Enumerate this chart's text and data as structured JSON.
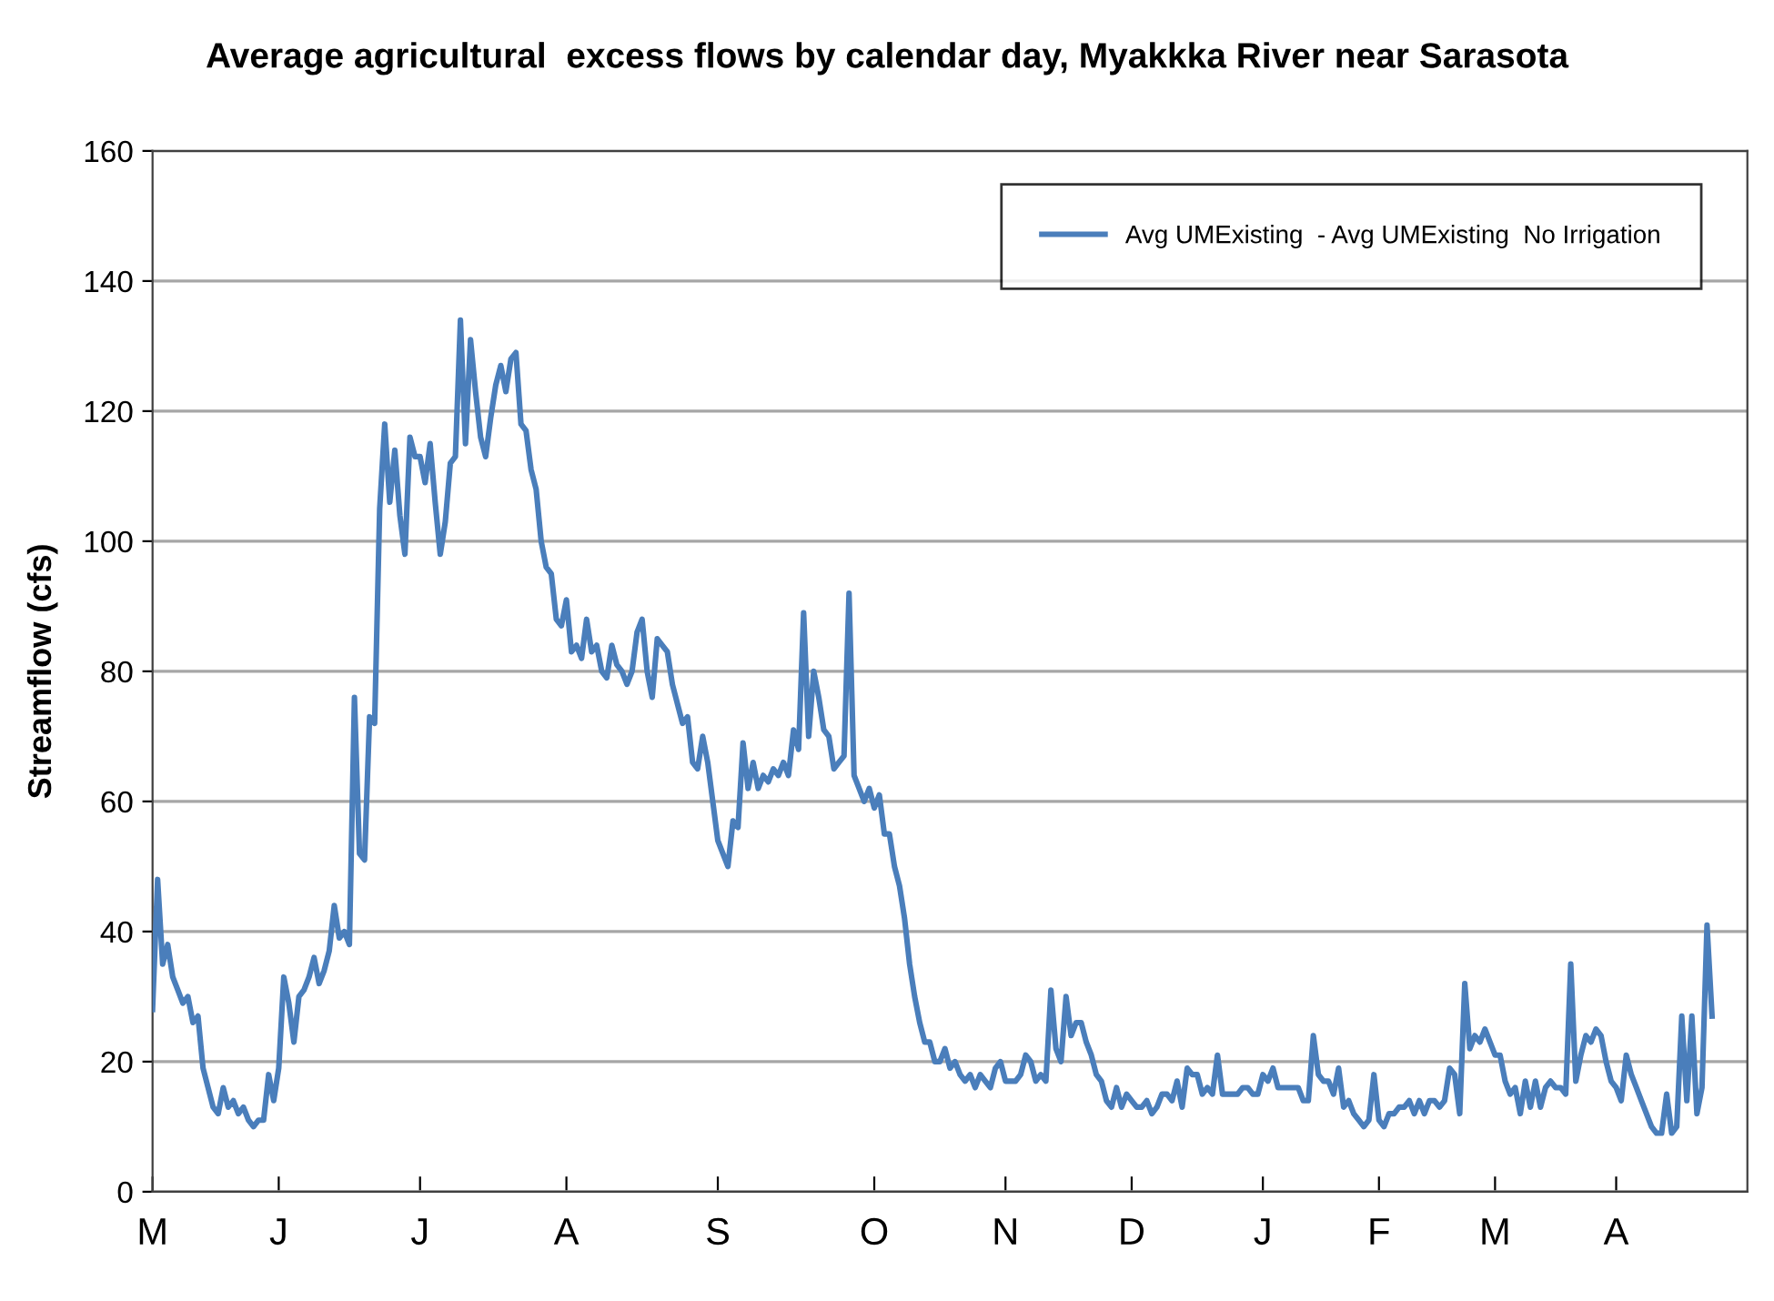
{
  "chart_data": {
    "type": "line",
    "title": "Average agricultural  excess flows by calendar day, Myakkka River near Sarasota",
    "ylabel": "Streamflow (cfs)",
    "ylim": [
      0,
      160
    ],
    "yticks": [
      0,
      20,
      40,
      60,
      80,
      100,
      120,
      140,
      160
    ],
    "categories": [
      "M",
      null,
      null,
      null,
      null,
      null,
      null,
      null,
      null,
      null,
      null,
      null,
      null,
      null,
      null,
      null,
      null,
      null,
      null,
      null,
      null,
      null,
      null,
      null,
      null,
      "J",
      null,
      null,
      null,
      null,
      null,
      null,
      null,
      null,
      null,
      null,
      null,
      null,
      null,
      null,
      null,
      null,
      null,
      null,
      null,
      null,
      null,
      null,
      null,
      null,
      null,
      null,
      null,
      "J",
      null,
      null,
      null,
      null,
      null,
      null,
      null,
      null,
      null,
      null,
      null,
      null,
      null,
      null,
      null,
      null,
      null,
      null,
      null,
      null,
      null,
      null,
      null,
      null,
      null,
      null,
      null,
      null,
      "A",
      null,
      null,
      null,
      null,
      null,
      null,
      null,
      null,
      null,
      null,
      null,
      null,
      null,
      null,
      null,
      null,
      null,
      null,
      null,
      null,
      null,
      null,
      null,
      null,
      null,
      null,
      null,
      null,
      null,
      "S",
      null,
      null,
      null,
      null,
      null,
      null,
      null,
      null,
      null,
      null,
      null,
      null,
      null,
      null,
      null,
      null,
      null,
      null,
      null,
      null,
      null,
      null,
      null,
      null,
      null,
      null,
      null,
      null,
      null,
      null,
      "O",
      null,
      null,
      null,
      null,
      null,
      null,
      null,
      null,
      null,
      null,
      null,
      null,
      null,
      null,
      null,
      null,
      null,
      null,
      null,
      null,
      null,
      null,
      null,
      null,
      null,
      "N",
      null,
      null,
      null,
      null,
      null,
      null,
      null,
      null,
      null,
      null,
      null,
      null,
      null,
      null,
      null,
      null,
      null,
      null,
      null,
      null,
      null,
      null,
      null,
      null,
      "D",
      null,
      null,
      null,
      null,
      null,
      null,
      null,
      null,
      null,
      null,
      null,
      null,
      null,
      null,
      null,
      null,
      null,
      null,
      null,
      null,
      null,
      null,
      null,
      null,
      null,
      "J",
      null,
      null,
      null,
      null,
      null,
      null,
      null,
      null,
      null,
      null,
      null,
      null,
      null,
      null,
      null,
      null,
      null,
      null,
      null,
      null,
      null,
      null,
      "F",
      null,
      null,
      null,
      null,
      null,
      null,
      null,
      null,
      null,
      null,
      null,
      null,
      null,
      null,
      null,
      null,
      null,
      null,
      null,
      null,
      null,
      null,
      "M",
      null,
      null,
      null,
      null,
      null,
      null,
      null,
      null,
      null,
      null,
      null,
      null,
      null,
      null,
      null,
      null,
      null,
      null,
      null,
      null,
      null,
      null,
      null,
      "A",
      null,
      null,
      null,
      null,
      null,
      null,
      null,
      null,
      null,
      null,
      null,
      null,
      null,
      null,
      null,
      null,
      null,
      null,
      null,
      null,
      null,
      null,
      null,
      null,
      null,
      null
    ],
    "grid": "y",
    "legend": "top right",
    "marker": "none",
    "line_style": "solid",
    "series": [
      {
        "name": "Avg UMExisting  - Avg UMExisting  No Irrigation",
        "color": "#4a7ebb",
        "values": [
          28,
          48,
          35,
          38,
          33,
          31,
          29,
          30,
          26,
          27,
          19,
          16,
          13,
          12,
          16,
          13,
          14,
          12,
          13,
          11,
          10,
          11,
          11,
          18,
          14,
          19,
          33,
          29,
          23,
          30,
          31,
          33,
          36,
          32,
          34,
          37,
          44,
          39,
          40,
          38,
          76,
          52,
          51,
          73,
          72,
          105,
          118,
          106,
          114,
          104,
          98,
          116,
          113,
          113,
          109,
          115,
          106,
          98,
          103,
          112,
          113,
          134,
          115,
          131,
          123,
          116,
          113,
          119,
          124,
          127,
          123,
          128,
          129,
          118,
          117,
          111,
          108,
          100,
          96,
          95,
          88,
          87,
          91,
          83,
          84,
          82,
          88,
          83,
          84,
          80,
          79,
          84,
          81,
          80,
          78,
          80,
          86,
          88,
          80,
          76,
          85,
          84,
          83,
          78,
          75,
          72,
          73,
          66,
          65,
          70,
          66,
          60,
          54,
          52,
          50,
          57,
          56,
          69,
          62,
          66,
          62,
          64,
          63,
          65,
          64,
          66,
          64,
          71,
          68,
          89,
          70,
          80,
          76,
          71,
          70,
          65,
          66,
          67,
          92,
          64,
          62,
          60,
          62,
          59,
          61,
          55,
          55,
          50,
          47,
          42,
          35,
          30,
          26,
          23,
          23,
          20,
          20,
          22,
          19,
          20,
          18,
          17,
          18,
          16,
          18,
          17,
          16,
          19,
          20,
          17,
          17,
          17,
          18,
          21,
          20,
          17,
          18,
          17,
          31,
          22,
          20,
          30,
          24,
          26,
          26,
          23,
          21,
          18,
          17,
          14,
          13,
          16,
          13,
          15,
          14,
          13,
          13,
          14,
          12,
          13,
          15,
          15,
          14,
          17,
          13,
          19,
          18,
          18,
          15,
          16,
          15,
          21,
          15,
          15,
          15,
          15,
          16,
          16,
          15,
          15,
          18,
          17,
          19,
          16,
          16,
          16,
          16,
          16,
          14,
          14,
          24,
          18,
          17,
          17,
          15,
          19,
          13,
          14,
          12,
          11,
          10,
          11,
          18,
          11,
          10,
          12,
          12,
          13,
          13,
          14,
          12,
          14,
          12,
          14,
          14,
          13,
          14,
          19,
          18,
          12,
          32,
          22,
          24,
          23,
          25,
          23,
          21,
          21,
          17,
          15,
          16,
          12,
          17,
          13,
          17,
          13,
          16,
          17,
          16,
          16,
          15,
          35,
          17,
          21,
          24,
          23,
          25,
          24,
          20,
          17,
          16,
          14,
          21,
          18,
          16,
          14,
          12,
          10,
          9,
          9,
          15,
          9,
          10,
          27,
          14,
          27,
          12,
          16,
          41,
          27,
          null,
          null,
          null,
          null,
          null,
          null,
          null
        ]
      }
    ]
  }
}
